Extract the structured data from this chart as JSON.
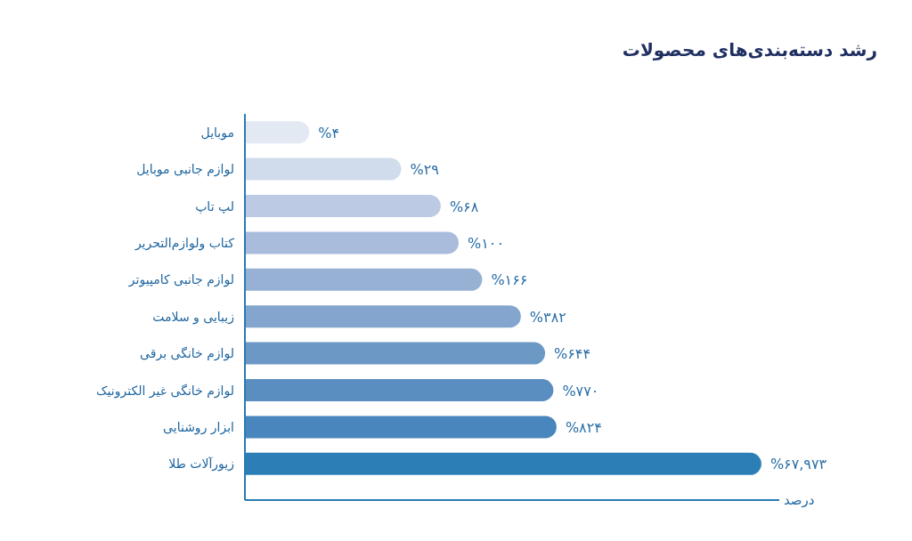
{
  "chart_data": {
    "type": "bar",
    "orientation": "horizontal",
    "title": "رشد دسته‌بندی‌های محصولات",
    "annotations": [
      "درصد"
    ],
    "categories": [
      "موبایل",
      "لوازم جانبی موبایل",
      "لپ تاپ",
      "کتاب ولوازم‌التحریر",
      "لوازم جانبی کامپیوتر",
      "زیبایی و سلامت",
      "لوازم خانگی برقی",
      "لوازم خانگی غیر الکترونیک",
      "ابزار روشنایی",
      "زیورآلات طلا"
    ],
    "values": [
      4,
      29,
      68,
      100,
      166,
      382,
      644,
      770,
      824,
      67973
    ],
    "value_labels": [
      "%۴",
      "%۲۹",
      "%۶۸",
      "%۱۰۰",
      "%۱۶۶",
      "%۳۸۲",
      "%۶۴۴",
      "%۷۷۰",
      "%۸۲۴",
      "%۶۷,۹۷۳"
    ],
    "colors": [
      "#e3e9f3",
      "#d0dcec",
      "#bccbe3",
      "#a9bcdb",
      "#97b1d5",
      "#84a5cd",
      "#6b98c5",
      "#5a8dc0",
      "#4886bd",
      "#2b7fb6"
    ],
    "log": "x",
    "xlim": [
      1,
      100000
    ]
  }
}
